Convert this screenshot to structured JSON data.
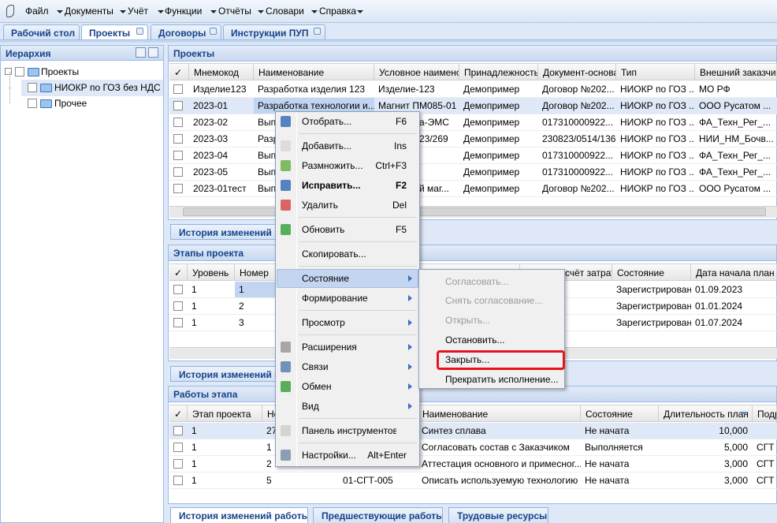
{
  "menu_bar": {
    "items": [
      "Файл",
      "Документы",
      "Учёт",
      "Функции",
      "Отчёты",
      "Словари",
      "Справка"
    ]
  },
  "tabs": {
    "items": [
      "Рабочий стол",
      "Проекты",
      "Договоры",
      "Инструкции ПУП"
    ]
  },
  "hierarchy": {
    "title": "Иерархия",
    "nodes": [
      "Проекты",
      "НИОКР по ГОЗ без НДС",
      "Прочее"
    ]
  },
  "projects": {
    "title": "Проекты",
    "columns": [
      "✓",
      "Мнемокод",
      "Наименование",
      "Условное наименова",
      "Принадлежность",
      "Документ-основан",
      "Тип",
      "Внешний заказчик"
    ],
    "rows": [
      [
        "Изделие123",
        "Разработка изделия 123",
        "Изделие-123",
        "Демопример",
        "Договор №202...",
        "НИОКР по ГОЗ ...",
        "МО РФ"
      ],
      [
        "2023-01",
        "Разработка технологии и...",
        "Магнит ПМ085-01",
        "Демопример",
        "Договор №202...",
        "НИОКР по ГОЗ ...",
        "ООО Русатом ..."
      ],
      [
        "2023-02",
        "Выпо",
        "а-ЭМС",
        "Демопример",
        "017310000922...",
        "НИОКР по ГОЗ ...",
        "ФА_Техн_Рег_..."
      ],
      [
        "2023-03",
        "Разр",
        "23/269",
        "Демопример",
        "230823/0514/136",
        "НИОКР по ГОЗ ...",
        "НИИ_НМ_Бочв..."
      ],
      [
        "2023-04",
        "Выпо",
        null,
        "Демопример",
        "017310000922...",
        "НИОКР по ГОЗ ...",
        "ФА_Техн_Рег_..."
      ],
      [
        "2023-05",
        "Выпо",
        null,
        "Демопример",
        "017310000922...",
        "НИОКР по ГОЗ ...",
        "ФА_Техн_Рег_..."
      ],
      [
        "2023-01тест",
        "Выпо",
        "й маг...",
        "Демопример",
        "Договор №202...",
        "НИОКР по ГОЗ ...",
        "ООО Русатом ..."
      ]
    ]
  },
  "history_tab_1": "История изменений п",
  "stages": {
    "title": "Этапы проекта",
    "columns": [
      "✓",
      "Уровень",
      "Номер",
      "счёт затрат.",
      "Состояние",
      "Дата начала план"
    ],
    "rows": [
      [
        "1",
        "1",
        null,
        "Зарегистрирован",
        "01.09.2023"
      ],
      [
        "1",
        "2",
        null,
        "Зарегистрирован",
        "01.01.2024"
      ],
      [
        "1",
        "3",
        null,
        "Зарегистрирован",
        "01.07.2024"
      ]
    ]
  },
  "history_tab_2": "История изменений э",
  "works": {
    "title": "Работы этапа",
    "columns": [
      "✓",
      "Этап проекта",
      "Но",
      null,
      "Наименование",
      "Состояние",
      "Длительность план",
      "Подр"
    ],
    "rows": [
      [
        "1",
        "27",
        null,
        "Синтез сплава",
        "Не начата",
        "10,000",
        null
      ],
      [
        "1",
        "1",
        null,
        "Согласовать состав с Заказчиком",
        "Выполняется",
        "5,000",
        "СГТ"
      ],
      [
        "1",
        "2",
        null,
        "Аттестация основного и примесног...",
        "Не начата",
        "3,000",
        "СГТ"
      ],
      [
        "1",
        "5",
        "01-СГТ-005",
        "Описать используемую технологию",
        "Не начата",
        "3,000",
        "СГТ"
      ]
    ]
  },
  "bottom_tabs": [
    "История изменений работы",
    "Предшествующие работы",
    "Трудовые ресурсы"
  ],
  "context_menu": {
    "items": [
      {
        "label": "Отобрать...",
        "shortcut": "F6"
      },
      {
        "label": "Добавить...",
        "shortcut": "Ins"
      },
      {
        "label": "Размножить...",
        "shortcut": "Ctrl+F3"
      },
      {
        "label": "Исправить...",
        "shortcut": "F2",
        "bold": true
      },
      {
        "label": "Удалить",
        "shortcut": "Del"
      },
      {
        "label": "Обновить",
        "shortcut": "F5"
      },
      {
        "label": "Скопировать..."
      },
      {
        "label": "Состояние",
        "has_submenu": true
      },
      {
        "label": "Формирование",
        "has_submenu": true
      },
      {
        "label": "Просмотр",
        "has_submenu": true
      },
      {
        "label": "Расширения",
        "has_submenu": true
      },
      {
        "label": "Связи",
        "has_submenu": true
      },
      {
        "label": "Обмен",
        "has_submenu": true
      },
      {
        "label": "Вид",
        "has_submenu": true
      },
      {
        "label": "Панель инструментов"
      },
      {
        "label": "Настройки...",
        "shortcut": "Alt+Enter"
      }
    ]
  },
  "submenu": {
    "items": [
      {
        "label": "Согласовать...",
        "disabled": true
      },
      {
        "label": "Снять согласование...",
        "disabled": true
      },
      {
        "label": "Открыть...",
        "disabled": true
      },
      {
        "label": "Остановить..."
      },
      {
        "label": "Закрыть..."
      },
      {
        "label": "Прекратить исполнение..."
      }
    ]
  }
}
